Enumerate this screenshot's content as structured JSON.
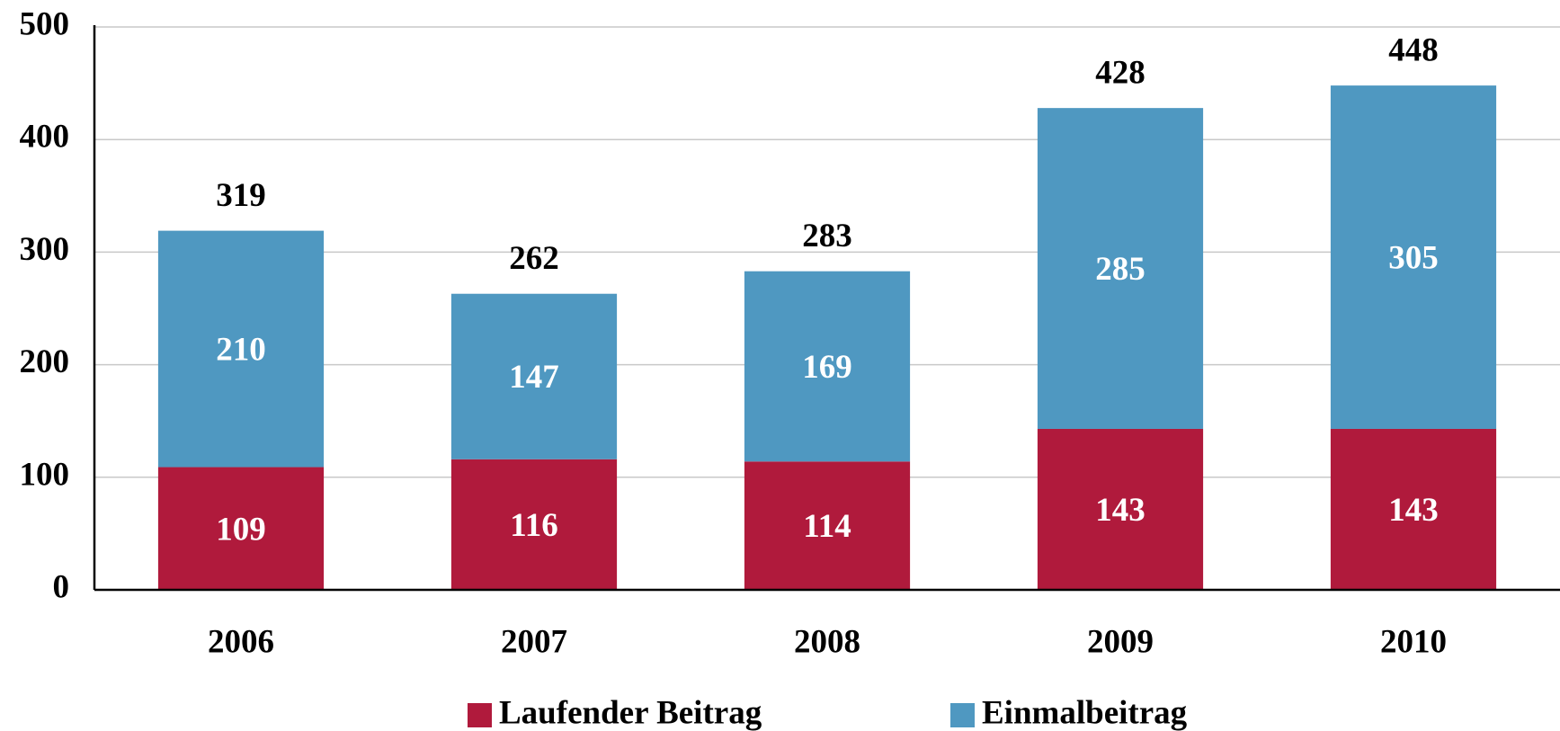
{
  "chart_data": {
    "type": "stacked_bar",
    "categories": [
      "2006",
      "2007",
      "2008",
      "2009",
      "2010"
    ],
    "series": [
      {
        "name": "Laufender Beitrag",
        "color": "#b01a3c",
        "values": [
          109,
          116,
          114,
          143,
          143
        ]
      },
      {
        "name": "Einmalbeitrag",
        "color": "#4f98c1",
        "values": [
          210,
          147,
          169,
          285,
          305
        ]
      }
    ],
    "totals": [
      319,
      262,
      283,
      428,
      448
    ],
    "ylim": [
      0,
      500
    ],
    "yticks": [
      0,
      100,
      200,
      300,
      400,
      500
    ],
    "grid": true,
    "legend": "bottom"
  }
}
